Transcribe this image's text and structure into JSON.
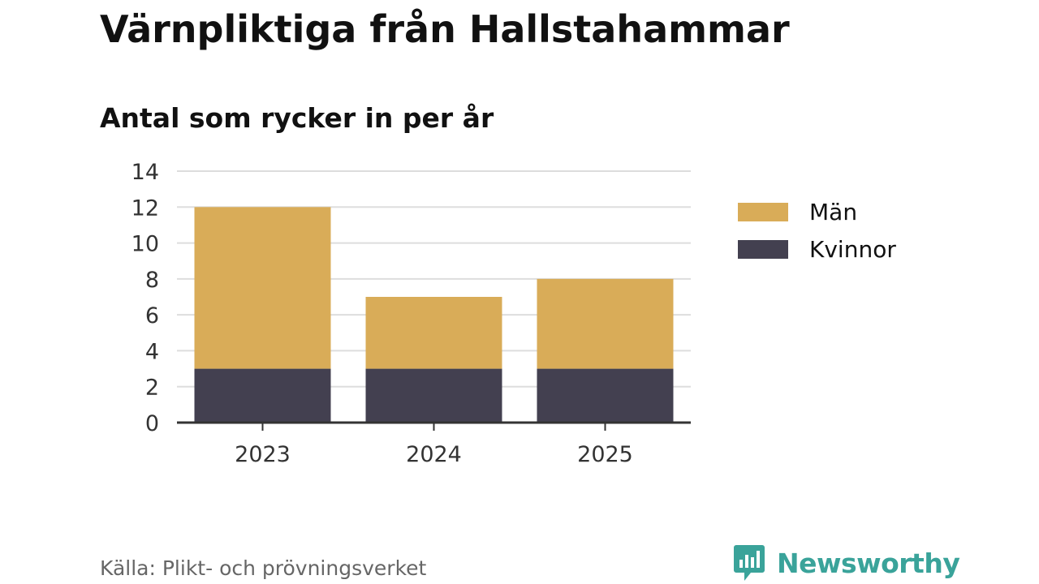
{
  "title": "Värnpliktiga från Hallstahammar",
  "subtitle": "Antal som rycker in per år",
  "chart_data": {
    "type": "bar",
    "stacked": true,
    "categories": [
      "2023",
      "2024",
      "2025"
    ],
    "series": [
      {
        "name": "Kvinnor",
        "values": [
          3,
          3,
          3
        ],
        "color": "#434050"
      },
      {
        "name": "Män",
        "values": [
          9,
          4,
          5
        ],
        "color": "#d9ac58"
      }
    ],
    "legend_order": [
      "Män",
      "Kvinnor"
    ],
    "ylim": [
      0,
      14
    ],
    "yticks": [
      0,
      2,
      4,
      6,
      8,
      10,
      12,
      14
    ],
    "grid": true,
    "legend_position": "right",
    "xlabel": "",
    "ylabel": ""
  },
  "footer": {
    "source": "Källa: Plikt- och prövningsverket",
    "brand": "Newsworthy",
    "brand_icon": "bar-chart-bubble-icon",
    "brand_color": "#3aa39a"
  }
}
